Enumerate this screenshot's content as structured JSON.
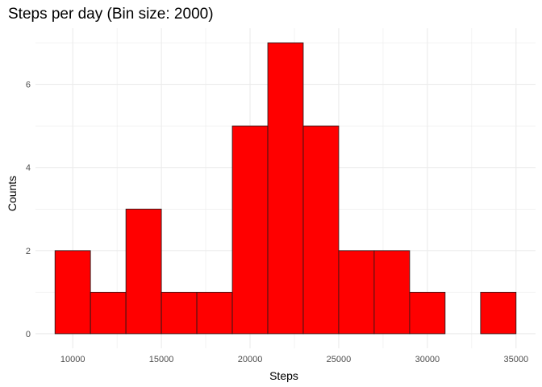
{
  "chart_data": {
    "type": "bar",
    "title": "Steps per day (Bin size: 2000)",
    "xlabel": "Steps",
    "ylabel": "Counts",
    "bin_size": 2000,
    "bins": [
      {
        "x0": 9000,
        "x1": 11000,
        "count": 2
      },
      {
        "x0": 11000,
        "x1": 13000,
        "count": 1
      },
      {
        "x0": 13000,
        "x1": 15000,
        "count": 3
      },
      {
        "x0": 15000,
        "x1": 17000,
        "count": 1
      },
      {
        "x0": 17000,
        "x1": 19000,
        "count": 1
      },
      {
        "x0": 19000,
        "x1": 21000,
        "count": 5
      },
      {
        "x0": 21000,
        "x1": 23000,
        "count": 7
      },
      {
        "x0": 23000,
        "x1": 25000,
        "count": 5
      },
      {
        "x0": 25000,
        "x1": 27000,
        "count": 2
      },
      {
        "x0": 27000,
        "x1": 29000,
        "count": 2
      },
      {
        "x0": 29000,
        "x1": 31000,
        "count": 1
      },
      {
        "x0": 31000,
        "x1": 33000,
        "count": 0
      },
      {
        "x0": 33000,
        "x1": 35000,
        "count": 1
      }
    ],
    "xticks": [
      10000,
      15000,
      20000,
      25000,
      30000,
      35000
    ],
    "yticks": [
      0,
      2,
      4,
      6
    ],
    "xlim": [
      7900,
      36100
    ],
    "ylim": [
      -0.35,
      7.35
    ],
    "grid": true,
    "colors": {
      "bar_fill": "#ff0000",
      "bar_outline": "#1a1a1a",
      "grid": "#ebebeb"
    }
  }
}
